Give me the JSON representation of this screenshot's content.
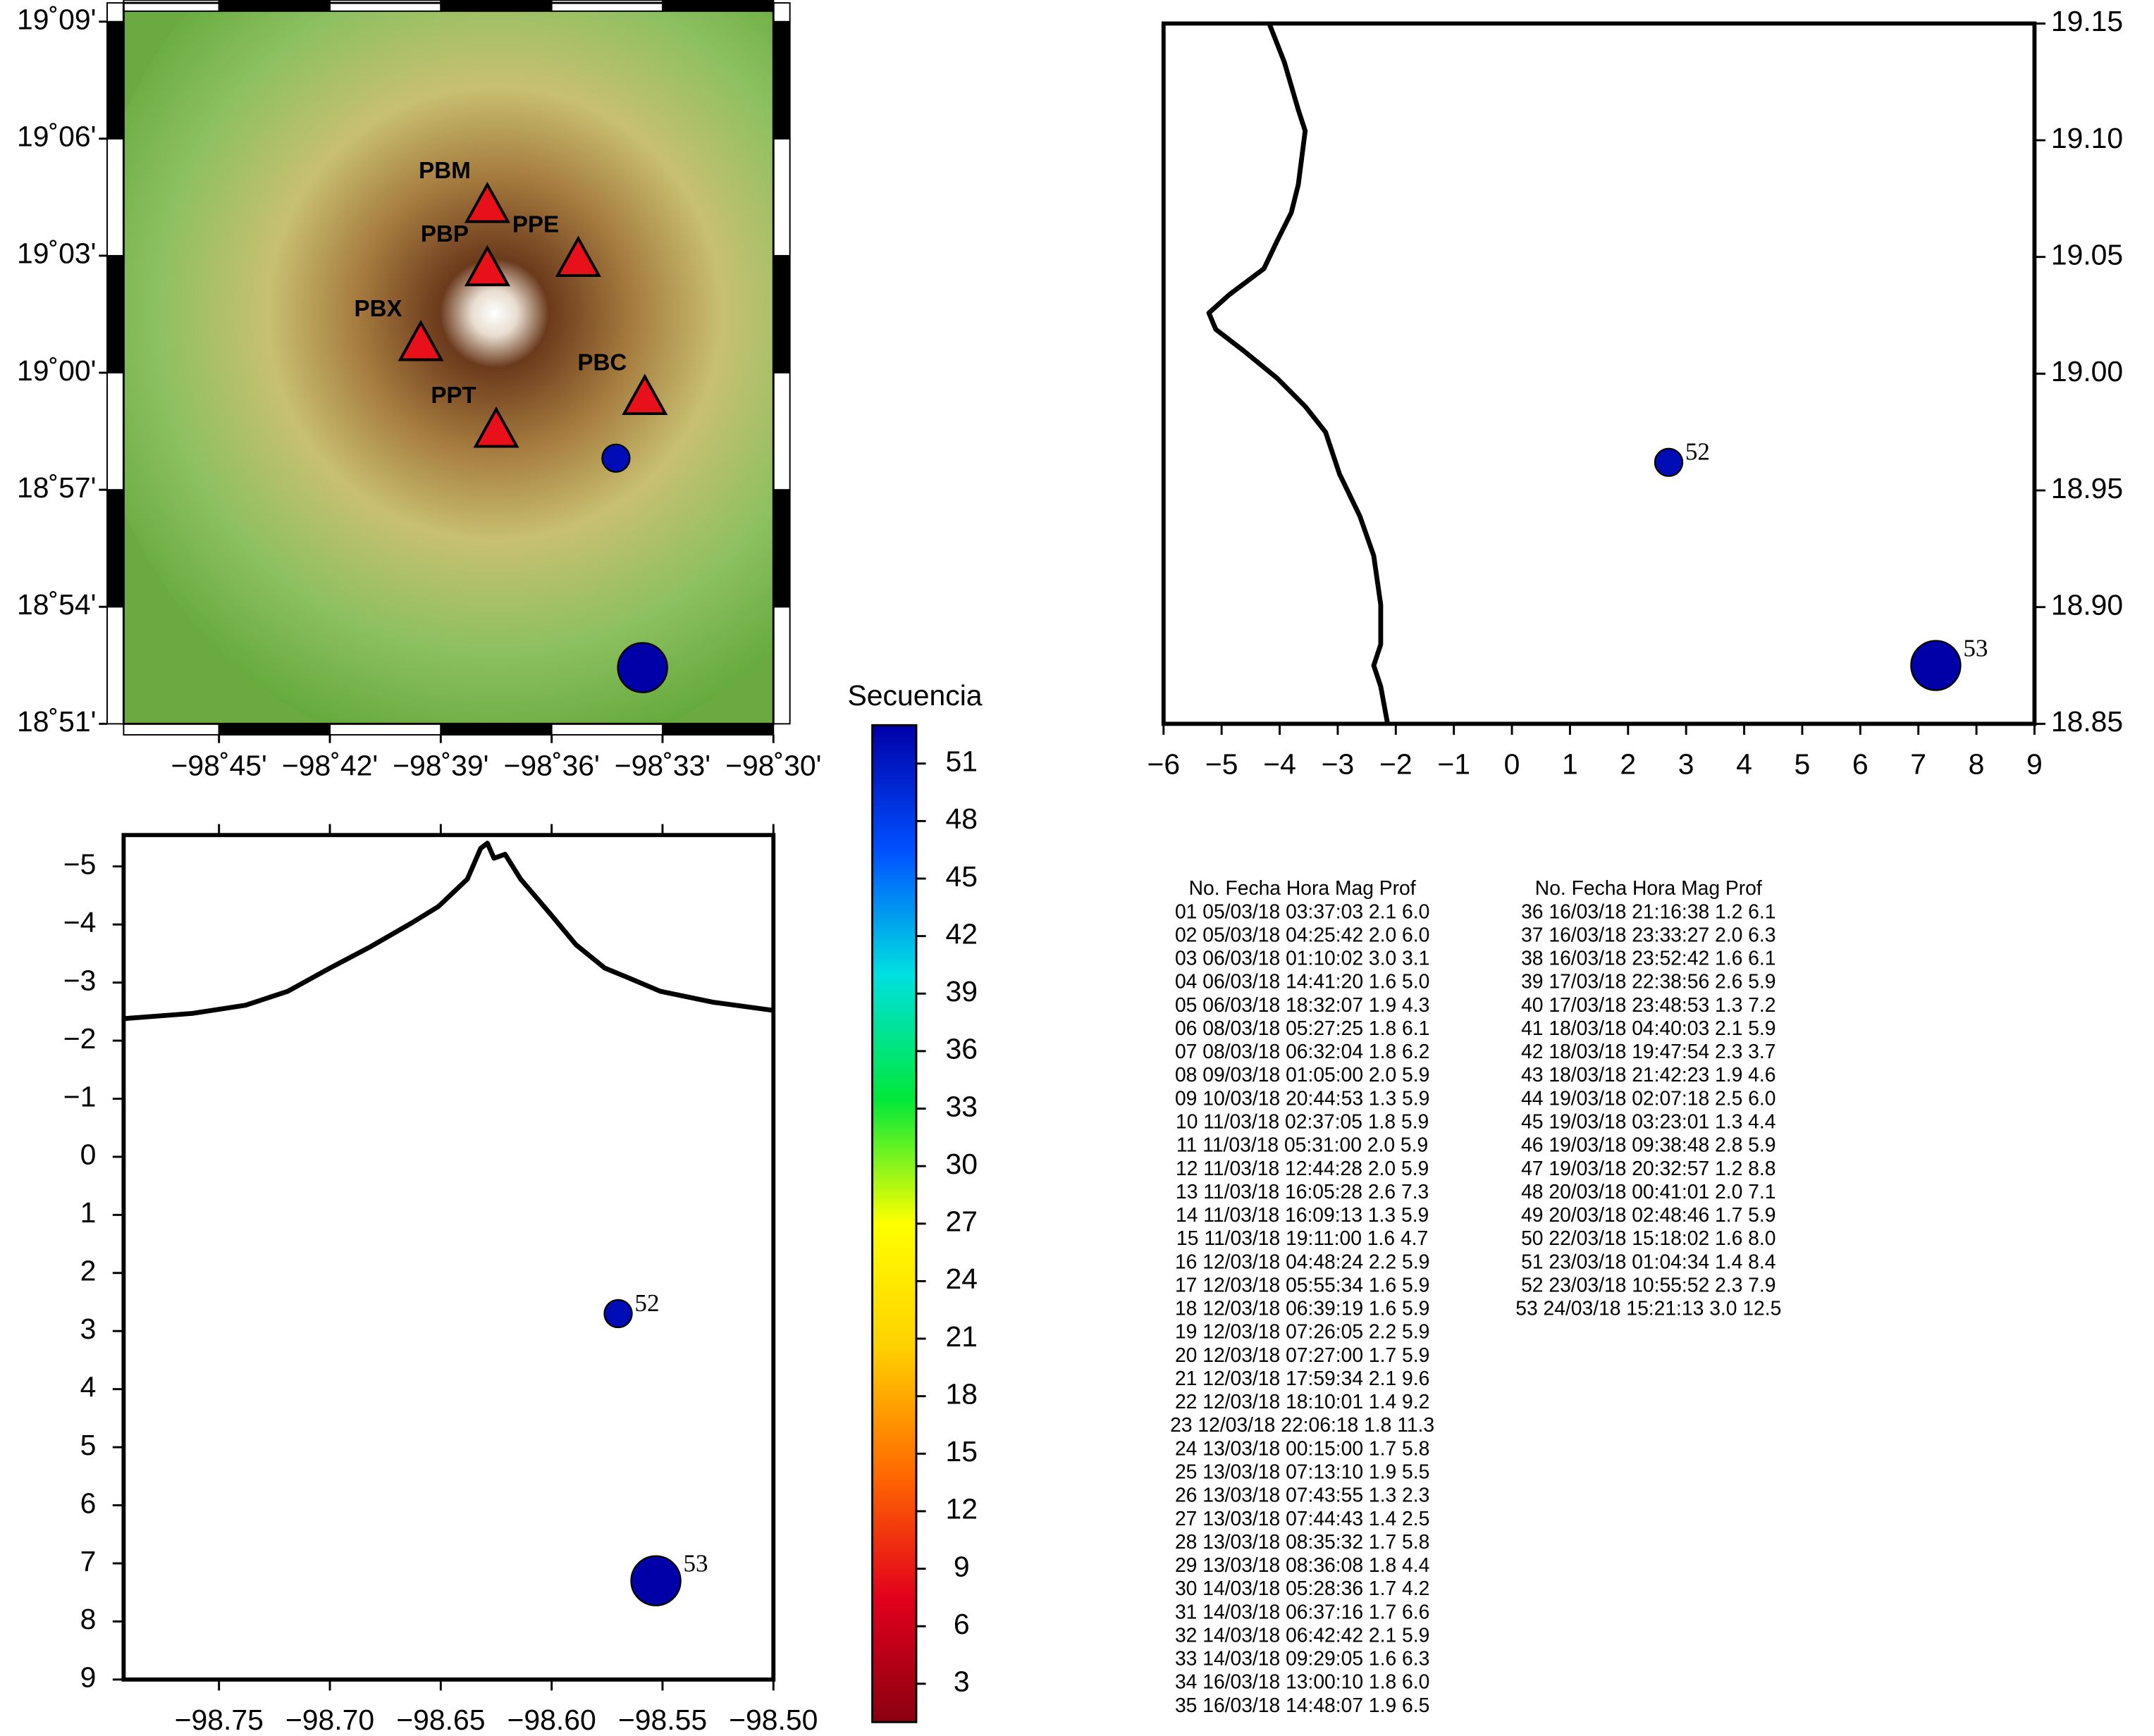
{
  "chart_data": [
    {
      "type": "map",
      "xlim": [
        -98.793,
        -98.5
      ],
      "ylim": [
        18.85,
        19.158
      ],
      "xticks": [
        {
          "value": -98.75,
          "label": "−98˚45'"
        },
        {
          "value": -98.7,
          "label": "−98˚42'"
        },
        {
          "value": -98.65,
          "label": "−98˚39'"
        },
        {
          "value": -98.6,
          "label": "−98˚36'"
        },
        {
          "value": -98.55,
          "label": "−98˚33'"
        },
        {
          "value": -98.5,
          "label": "−98˚30'"
        }
      ],
      "yticks": [
        {
          "value": 18.85,
          "label": "18˚51'"
        },
        {
          "value": 18.9,
          "label": "18˚54'"
        },
        {
          "value": 18.95,
          "label": "18˚57'"
        },
        {
          "value": 19.0,
          "label": "19˚00'"
        },
        {
          "value": 19.05,
          "label": "19˚03'"
        },
        {
          "value": 19.1,
          "label": "19˚06'"
        },
        {
          "value": 19.15,
          "label": "19˚09'"
        }
      ],
      "station_color": "#e8111a",
      "stations": [
        {
          "label": "PBM",
          "lon": -98.629,
          "lat": 19.071
        },
        {
          "label": "PBP",
          "lon": -98.629,
          "lat": 19.044
        },
        {
          "label": "PPE",
          "lon": -98.588,
          "lat": 19.048
        },
        {
          "label": "PBX",
          "lon": -98.659,
          "lat": 19.012
        },
        {
          "label": "PBC",
          "lon": -98.558,
          "lat": 18.989
        },
        {
          "label": "PPT",
          "lon": -98.625,
          "lat": 18.975
        }
      ],
      "events": [
        {
          "seq": 52,
          "mag": 2.3,
          "lon": -98.571,
          "lat": 18.9635
        },
        {
          "seq": 53,
          "mag": 3.0,
          "lon": -98.559,
          "lat": 18.874
        }
      ]
    },
    {
      "type": "section",
      "yaxis_side": "right",
      "y_inverted": false,
      "xlim": [
        -6,
        9
      ],
      "ylim": [
        18.85,
        19.15
      ],
      "xticks": [
        {
          "value": -6,
          "label": "−6"
        },
        {
          "value": -5,
          "label": "−5"
        },
        {
          "value": -4,
          "label": "−4"
        },
        {
          "value": -3,
          "label": "−3"
        },
        {
          "value": -2,
          "label": "−2"
        },
        {
          "value": -1,
          "label": "−1"
        },
        0,
        1,
        2,
        3,
        4,
        5,
        6,
        7,
        8,
        9
      ],
      "yticks": [
        18.85,
        {
          "value": 18.9,
          "label": "18.90"
        },
        18.95,
        {
          "value": 19.0,
          "label": "19.00"
        },
        19.05,
        {
          "value": 19.1,
          "label": "19.10"
        },
        19.15
      ],
      "profile": {
        "x": [
          -4.18,
          -3.92,
          -3.68,
          -3.56,
          -3.68,
          -3.8,
          -4.04,
          -4.27,
          -4.86,
          -5.22,
          -5.1,
          -4.63,
          -4.04,
          -3.56,
          -3.21,
          -2.97,
          -2.62,
          -2.38,
          -2.26,
          -2.26,
          -2.38,
          -2.26,
          -2.14
        ],
        "y": [
          19.15,
          19.1335,
          19.113,
          19.104,
          19.081,
          19.069,
          19.057,
          19.045,
          19.034,
          19.026,
          19.019,
          19.01,
          18.998,
          18.986,
          18.975,
          18.957,
          18.939,
          18.922,
          18.901,
          18.884,
          18.875,
          18.866,
          18.85
        ]
      },
      "events": [
        {
          "label": "52",
          "seq": 52,
          "mag": 2.3,
          "x": 2.7,
          "y": 18.962
        },
        {
          "label": "53",
          "seq": 53,
          "mag": 3.0,
          "x": 7.3,
          "y": 18.875
        }
      ]
    },
    {
      "type": "section",
      "yaxis_side": "left",
      "y_inverted": true,
      "xlim": [
        -98.793,
        -98.5
      ],
      "ylim": [
        -5.54,
        9
      ],
      "xticks": [
        {
          "value": -98.75,
          "label": "−98.75"
        },
        {
          "value": -98.7,
          "label": "−98.70"
        },
        {
          "value": -98.65,
          "label": "−98.65"
        },
        {
          "value": -98.6,
          "label": "−98.60"
        },
        {
          "value": -98.55,
          "label": "−98.55"
        },
        {
          "value": -98.5,
          "label": "−98.50"
        }
      ],
      "yticks": [
        {
          "value": -5,
          "label": "−5"
        },
        {
          "value": -4,
          "label": "−4"
        },
        {
          "value": -3,
          "label": "−3"
        },
        {
          "value": -2,
          "label": "−2"
        },
        {
          "value": -1,
          "label": "−1"
        },
        0,
        1,
        2,
        3,
        4,
        5,
        6,
        7,
        8,
        9
      ],
      "profile": {
        "x": [
          -98.793,
          -98.762,
          -98.738,
          -98.719,
          -98.7,
          -98.682,
          -98.663,
          -98.651,
          -98.638,
          -98.632,
          -98.629,
          -98.626,
          -98.621,
          -98.614,
          -98.601,
          -98.589,
          -98.576,
          -98.564,
          -98.551,
          -98.527,
          -98.5
        ],
        "y": [
          -2.38,
          -2.47,
          -2.61,
          -2.85,
          -3.25,
          -3.61,
          -4.03,
          -4.31,
          -4.78,
          -5.31,
          -5.4,
          -5.14,
          -5.21,
          -4.78,
          -4.2,
          -3.65,
          -3.25,
          -3.06,
          -2.85,
          -2.66,
          -2.52
        ]
      },
      "events": [
        {
          "label": "52",
          "seq": 52,
          "mag": 2.3,
          "x": -98.57,
          "y": 2.7
        },
        {
          "label": "53",
          "seq": 53,
          "mag": 3.0,
          "x": -98.553,
          "y": 7.3
        }
      ]
    },
    {
      "type": "colorbar",
      "title": "Secuencia",
      "lim": [
        1,
        53
      ],
      "colors": [
        "#8a0010",
        "#e3001c",
        "#ff6a00",
        "#ffd000",
        "#ffff00",
        "#00e83a",
        "#00e0e0",
        "#0050ff",
        "#0000a8"
      ],
      "ticks": [
        3,
        6,
        9,
        12,
        15,
        18,
        21,
        24,
        27,
        30,
        33,
        36,
        39,
        42,
        45,
        48,
        51
      ]
    }
  ],
  "catalog": [
    {
      "columns": [
        "No.",
        "Fecha",
        "Hora",
        "Mag",
        "Prof"
      ],
      "rows": [
        [
          "01",
          "05/03/18",
          "03:37:03",
          "2.1",
          "6.0"
        ],
        [
          "02",
          "05/03/18",
          "04:25:42",
          "2.0",
          "6.0"
        ],
        [
          "03",
          "06/03/18",
          "01:10:02",
          "3.0",
          "3.1"
        ],
        [
          "04",
          "06/03/18",
          "14:41:20",
          "1.6",
          "5.0"
        ],
        [
          "05",
          "06/03/18",
          "18:32:07",
          "1.9",
          "4.3"
        ],
        [
          "06",
          "08/03/18",
          "05:27:25",
          "1.8",
          "6.1"
        ],
        [
          "07",
          "08/03/18",
          "06:32:04",
          "1.8",
          "6.2"
        ],
        [
          "08",
          "09/03/18",
          "01:05:00",
          "2.0",
          "5.9"
        ],
        [
          "09",
          "10/03/18",
          "20:44:53",
          "1.3",
          "5.9"
        ],
        [
          "10",
          "11/03/18",
          "02:37:05",
          "1.8",
          "5.9"
        ],
        [
          "11",
          "11/03/18",
          "05:31:00",
          "2.0",
          "5.9"
        ],
        [
          "12",
          "11/03/18",
          "12:44:28",
          "2.0",
          "5.9"
        ],
        [
          "13",
          "11/03/18",
          "16:05:28",
          "2.6",
          "7.3"
        ],
        [
          "14",
          "11/03/18",
          "16:09:13",
          "1.3",
          "5.9"
        ],
        [
          "15",
          "11/03/18",
          "19:11:00",
          "1.6",
          "4.7"
        ],
        [
          "16",
          "12/03/18",
          "04:48:24",
          "2.2",
          "5.9"
        ],
        [
          "17",
          "12/03/18",
          "05:55:34",
          "1.6",
          "5.9"
        ],
        [
          "18",
          "12/03/18",
          "06:39:19",
          "1.6",
          "5.9"
        ],
        [
          "19",
          "12/03/18",
          "07:26:05",
          "2.2",
          "5.9"
        ],
        [
          "20",
          "12/03/18",
          "07:27:00",
          "1.7",
          "5.9"
        ],
        [
          "21",
          "12/03/18",
          "17:59:34",
          "2.1",
          "9.6"
        ],
        [
          "22",
          "12/03/18",
          "18:10:01",
          "1.4",
          "9.2"
        ],
        [
          "23",
          "12/03/18",
          "22:06:18",
          "1.8",
          "11.3"
        ],
        [
          "24",
          "13/03/18",
          "00:15:00",
          "1.7",
          "5.8"
        ],
        [
          "25",
          "13/03/18",
          "07:13:10",
          "1.9",
          "5.5"
        ],
        [
          "26",
          "13/03/18",
          "07:43:55",
          "1.3",
          "2.3"
        ],
        [
          "27",
          "13/03/18",
          "07:44:43",
          "1.4",
          "2.5"
        ],
        [
          "28",
          "13/03/18",
          "08:35:32",
          "1.7",
          "5.8"
        ],
        [
          "29",
          "13/03/18",
          "08:36:08",
          "1.8",
          "4.4"
        ],
        [
          "30",
          "14/03/18",
          "05:28:36",
          "1.7",
          "4.2"
        ],
        [
          "31",
          "14/03/18",
          "06:37:16",
          "1.7",
          "6.6"
        ],
        [
          "32",
          "14/03/18",
          "06:42:42",
          "2.1",
          "5.9"
        ],
        [
          "33",
          "14/03/18",
          "09:29:05",
          "1.6",
          "6.3"
        ],
        [
          "34",
          "16/03/18",
          "13:00:10",
          "1.8",
          "6.0"
        ],
        [
          "35",
          "16/03/18",
          "14:48:07",
          "1.9",
          "6.5"
        ]
      ]
    },
    {
      "columns": [
        "No.",
        "Fecha",
        "Hora",
        "Mag",
        "Prof"
      ],
      "rows": [
        [
          "36",
          "16/03/18",
          "21:16:38",
          "1.2",
          "6.1"
        ],
        [
          "37",
          "16/03/18",
          "23:33:27",
          "2.0",
          "6.3"
        ],
        [
          "38",
          "16/03/18",
          "23:52:42",
          "1.6",
          "6.1"
        ],
        [
          "39",
          "17/03/18",
          "22:38:56",
          "2.6",
          "5.9"
        ],
        [
          "40",
          "17/03/18",
          "23:48:53",
          "1.3",
          "7.2"
        ],
        [
          "41",
          "18/03/18",
          "04:40:03",
          "2.1",
          "5.9"
        ],
        [
          "42",
          "18/03/18",
          "19:47:54",
          "2.3",
          "3.7"
        ],
        [
          "43",
          "18/03/18",
          "21:42:23",
          "1.9",
          "4.6"
        ],
        [
          "44",
          "19/03/18",
          "02:07:18",
          "2.5",
          "6.0"
        ],
        [
          "45",
          "19/03/18",
          "03:23:01",
          "1.3",
          "4.4"
        ],
        [
          "46",
          "19/03/18",
          "09:38:48",
          "2.8",
          "5.9"
        ],
        [
          "47",
          "19/03/18",
          "20:32:57",
          "1.2",
          "8.8"
        ],
        [
          "48",
          "20/03/18",
          "00:41:01",
          "2.0",
          "7.1"
        ],
        [
          "49",
          "20/03/18",
          "02:48:46",
          "1.7",
          "5.9"
        ],
        [
          "50",
          "22/03/18",
          "15:18:02",
          "1.6",
          "8.0"
        ],
        [
          "51",
          "23/03/18",
          "01:04:34",
          "1.4",
          "8.4"
        ],
        [
          "52",
          "23/03/18",
          "10:55:52",
          "2.3",
          "7.9"
        ],
        [
          "53",
          "24/03/18",
          "15:21:13",
          "3.0",
          "12.5"
        ]
      ]
    }
  ]
}
